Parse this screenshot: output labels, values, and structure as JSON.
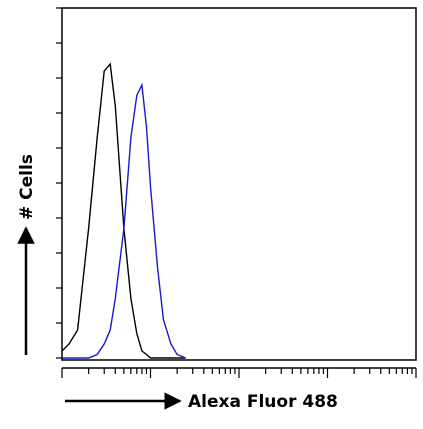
{
  "chart_data": {
    "type": "line",
    "x_label": "Alexa Fluor 488",
    "y_label": "# Cells",
    "x": [
      1,
      1.2,
      1.5,
      2,
      2.5,
      3,
      3.5,
      4,
      5,
      6,
      7,
      8,
      9,
      10,
      12,
      14,
      17,
      20,
      25
    ],
    "series": [
      {
        "color": "#000000",
        "values": [
          2,
          4,
          8,
          37,
          63,
          82,
          84,
          72,
          37,
          17,
          7,
          2,
          1,
          0,
          0,
          0,
          0,
          0,
          0
        ]
      },
      {
        "color": "#1a1acc",
        "values": [
          0,
          0,
          0,
          0,
          1,
          4,
          8,
          17,
          37,
          63,
          75,
          78,
          66,
          49,
          26,
          11,
          4,
          1,
          0
        ]
      }
    ],
    "xlog": true,
    "xlim": [
      1,
      10000
    ],
    "xticks": [
      1,
      2,
      3,
      4,
      5,
      6,
      7,
      8,
      9,
      10,
      20,
      30,
      40,
      50,
      60,
      70,
      80,
      90,
      100,
      200,
      300,
      400,
      500,
      600,
      700,
      800,
      900,
      1000,
      2000,
      3000,
      4000,
      5000,
      6000,
      7000,
      8000,
      9000,
      10000
    ],
    "ylim": [
      0,
      100
    ],
    "yticks": [
      0,
      10,
      20,
      30,
      40,
      50,
      60,
      70,
      80,
      90,
      100
    ]
  }
}
